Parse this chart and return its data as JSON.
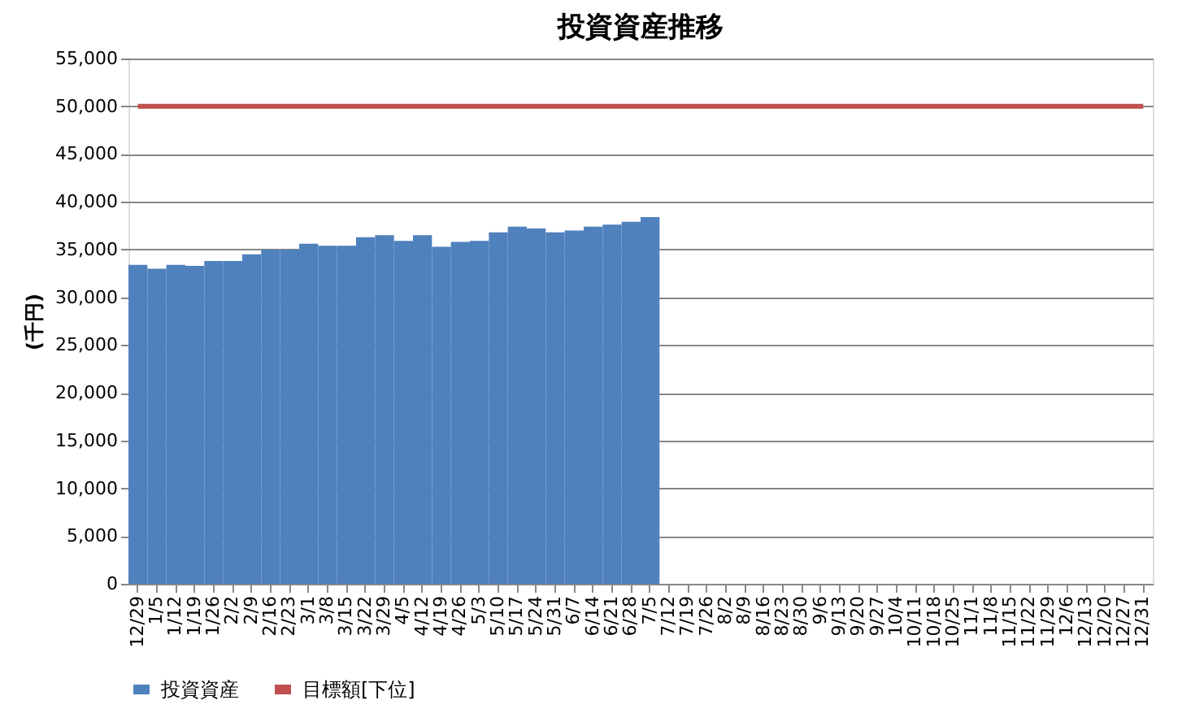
{
  "chart_data": {
    "type": "bar",
    "title": "投資資産推移",
    "ylabel": "(千円)",
    "categories": [
      "12/29",
      "1/5",
      "1/12",
      "1/19",
      "1/26",
      "2/2",
      "2/9",
      "2/16",
      "2/23",
      "3/1",
      "3/8",
      "3/15",
      "3/22",
      "3/29",
      "4/5",
      "4/12",
      "4/19",
      "4/26",
      "5/3",
      "5/10",
      "5/17",
      "5/24",
      "5/31",
      "6/7",
      "6/14",
      "6/21",
      "6/28",
      "7/5",
      "7/12",
      "7/19",
      "7/26",
      "8/2",
      "8/9",
      "8/16",
      "8/23",
      "8/30",
      "9/6",
      "9/13",
      "9/20",
      "9/27",
      "10/4",
      "10/11",
      "10/18",
      "10/25",
      "11/1",
      "11/8",
      "11/15",
      "11/22",
      "11/29",
      "12/6",
      "12/13",
      "12/20",
      "12/27",
      "12/31"
    ],
    "series": [
      {
        "name": "投資資産",
        "color": "#4f81bd",
        "values": [
          33400,
          33000,
          33400,
          33300,
          33800,
          33800,
          34500,
          35000,
          35000,
          35600,
          35400,
          35400,
          36300,
          36500,
          35900,
          36500,
          35300,
          35800,
          35900,
          36800,
          37400,
          37200,
          36800,
          37000,
          37400,
          37600,
          37900,
          38400,
          null,
          null,
          null,
          null,
          null,
          null,
          null,
          null,
          null,
          null,
          null,
          null,
          null,
          null,
          null,
          null,
          null,
          null,
          null,
          null,
          null,
          null,
          null,
          null,
          null,
          null
        ]
      },
      {
        "name": "目標額[下位]",
        "type": "line",
        "color": "#c0504d",
        "values": [
          50000,
          50000,
          50000,
          50000,
          50000,
          50000,
          50000,
          50000,
          50000,
          50000,
          50000,
          50000,
          50000,
          50000,
          50000,
          50000,
          50000,
          50000,
          50000,
          50000,
          50000,
          50000,
          50000,
          50000,
          50000,
          50000,
          50000,
          50000,
          50000,
          50000,
          50000,
          50000,
          50000,
          50000,
          50000,
          50000,
          50000,
          50000,
          50000,
          50000,
          50000,
          50000,
          50000,
          50000,
          50000,
          50000,
          50000,
          50000,
          50000,
          50000,
          50000,
          50000,
          50000,
          50000
        ]
      }
    ],
    "ylim": [
      0,
      55000
    ],
    "yticks": [
      {
        "value": 0,
        "label": "0"
      },
      {
        "value": 5000,
        "label": "5,000"
      },
      {
        "value": 10000,
        "label": "10,000"
      },
      {
        "value": 15000,
        "label": "15,000"
      },
      {
        "value": 20000,
        "label": "20,000"
      },
      {
        "value": 25000,
        "label": "25,000"
      },
      {
        "value": 30000,
        "label": "30,000"
      },
      {
        "value": 35000,
        "label": "35,000"
      },
      {
        "value": 40000,
        "label": "40,000"
      },
      {
        "value": 45000,
        "label": "45,000"
      },
      {
        "value": 50000,
        "label": "50,000"
      },
      {
        "value": 55000,
        "label": "55,000"
      }
    ],
    "grid": "y",
    "legend": "bottom",
    "marker": "none",
    "line_style": "solid"
  }
}
